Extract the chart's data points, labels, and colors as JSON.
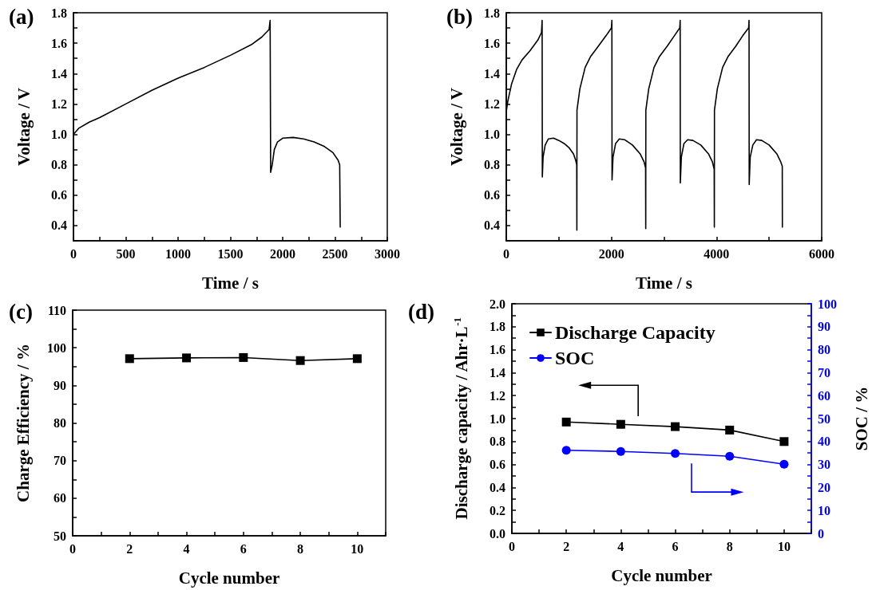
{
  "chart_data": [
    {
      "type": "line",
      "title": "(a)",
      "xlabel": "Time / s",
      "ylabel": "Voltage / V",
      "marker": "none",
      "line_style": "solid",
      "color": "#000000",
      "x": [
        0,
        50,
        150,
        250,
        500,
        750,
        1000,
        1250,
        1500,
        1700,
        1800,
        1870,
        1880,
        1885,
        1900,
        1920,
        1950,
        2000,
        2100,
        2200,
        2300,
        2400,
        2480,
        2530,
        2545,
        2550
      ],
      "values": [
        1.0,
        1.04,
        1.08,
        1.11,
        1.2,
        1.29,
        1.37,
        1.44,
        1.52,
        1.59,
        1.64,
        1.69,
        1.75,
        0.75,
        0.8,
        0.9,
        0.95,
        0.975,
        0.98,
        0.97,
        0.95,
        0.92,
        0.88,
        0.83,
        0.8,
        0.39
      ],
      "xlim": [
        0,
        3000
      ],
      "ylim": [
        0.3,
        1.8
      ],
      "xticks": [
        0,
        {
          "value": 250,
          "label": null
        },
        500,
        {
          "value": 750,
          "label": null
        },
        1000,
        {
          "value": 1250,
          "label": null
        },
        1500,
        {
          "value": 1750,
          "label": null
        },
        2000,
        {
          "value": 2250,
          "label": null
        },
        2500,
        {
          "value": 2750,
          "label": null
        },
        3000
      ],
      "yticks": [
        {
          "value": 0.3,
          "label": null
        },
        0.4,
        {
          "value": 0.5,
          "label": null
        },
        0.6,
        {
          "value": 0.7,
          "label": null
        },
        0.8,
        {
          "value": 0.9,
          "label": null
        },
        {
          "value": 1,
          "label": "1.0"
        },
        {
          "value": 1.1,
          "label": null
        },
        1.2,
        {
          "value": 1.3,
          "label": null
        },
        1.4,
        {
          "value": 1.5,
          "label": null
        },
        1.6,
        {
          "value": 1.7,
          "label": null
        },
        1.8
      ]
    },
    {
      "type": "line",
      "title": "(b)",
      "xlabel": "Time / s",
      "ylabel": "Voltage / V",
      "marker": "none",
      "line_style": "solid",
      "color": "#000000",
      "x": [
        0,
        30,
        100,
        200,
        300,
        450,
        600,
        670,
        682,
        686,
        700,
        740,
        800,
        900,
        1000,
        1100,
        1200,
        1280,
        1320,
        1340,
        1343,
        1345,
        1400,
        1500,
        1600,
        1750,
        1900,
        2000,
        2009,
        2012,
        2030,
        2080,
        2150,
        2250,
        2400,
        2550,
        2620,
        2650,
        2653,
        2655,
        2710,
        2810,
        2910,
        3060,
        3200,
        3300,
        3308,
        3311,
        3330,
        3380,
        3450,
        3550,
        3700,
        3850,
        3920,
        3955,
        3958,
        3960,
        4015,
        4115,
        4215,
        4365,
        4500,
        4610,
        4618,
        4621,
        4640,
        4690,
        4760,
        4860,
        5000,
        5150,
        5220,
        5250,
        5252
      ],
      "values": [
        1.15,
        1.22,
        1.33,
        1.43,
        1.49,
        1.55,
        1.62,
        1.67,
        1.75,
        0.72,
        0.85,
        0.93,
        0.97,
        0.975,
        0.96,
        0.94,
        0.91,
        0.87,
        0.83,
        0.8,
        0.37,
        1.16,
        1.3,
        1.44,
        1.51,
        1.58,
        1.65,
        1.7,
        1.75,
        0.7,
        0.85,
        0.94,
        0.97,
        0.965,
        0.93,
        0.87,
        0.82,
        0.78,
        0.38,
        1.16,
        1.3,
        1.44,
        1.51,
        1.58,
        1.65,
        1.7,
        1.75,
        0.68,
        0.85,
        0.94,
        0.965,
        0.96,
        0.93,
        0.87,
        0.82,
        0.77,
        0.39,
        1.16,
        1.3,
        1.44,
        1.51,
        1.58,
        1.65,
        1.7,
        1.75,
        0.67,
        0.85,
        0.93,
        0.965,
        0.96,
        0.93,
        0.87,
        0.82,
        0.79,
        0.39
      ],
      "xlim": [
        0,
        6000
      ],
      "ylim": [
        0.3,
        1.8
      ],
      "xticks": [
        0,
        {
          "value": 1000,
          "label": null
        },
        2000,
        {
          "value": 3000,
          "label": null
        },
        4000,
        {
          "value": 5000,
          "label": null
        },
        6000
      ],
      "yticks": [
        {
          "value": 0.3,
          "label": null
        },
        0.4,
        {
          "value": 0.5,
          "label": null
        },
        0.6,
        {
          "value": 0.7,
          "label": null
        },
        0.8,
        {
          "value": 0.9,
          "label": null
        },
        {
          "value": 1,
          "label": "1.0"
        },
        {
          "value": 1.1,
          "label": null
        },
        1.2,
        {
          "value": 1.3,
          "label": null
        },
        1.4,
        {
          "value": 1.5,
          "label": null
        },
        1.6,
        {
          "value": 1.7,
          "label": null
        },
        1.8
      ]
    },
    {
      "type": "line",
      "title": "(c)",
      "xlabel": "Cycle number",
      "ylabel": "Charge Efficiency / %",
      "marker": "square",
      "line_style": "solid",
      "color": "#000000",
      "x": [
        2,
        4,
        6,
        8,
        10
      ],
      "values": [
        97.1,
        97.3,
        97.4,
        96.6,
        97.1
      ],
      "xlim": [
        0,
        11
      ],
      "ylim": [
        50,
        110
      ],
      "xticks": [
        0,
        {
          "value": 1,
          "label": null
        },
        2,
        {
          "value": 3,
          "label": null
        },
        4,
        {
          "value": 5,
          "label": null
        },
        6,
        {
          "value": 7,
          "label": null
        },
        8,
        {
          "value": 9,
          "label": null
        },
        10,
        {
          "value": 11,
          "label": null
        }
      ],
      "yticks": [
        50,
        {
          "value": 55,
          "label": null
        },
        60,
        {
          "value": 65,
          "label": null
        },
        70,
        {
          "value": 75,
          "label": null
        },
        80,
        {
          "value": 85,
          "label": null
        },
        90,
        {
          "value": 95,
          "label": null
        },
        100,
        {
          "value": 105,
          "label": null
        },
        110
      ]
    },
    {
      "type": "line",
      "title": "(d)",
      "xlabel": "Cycle number",
      "ylabel": "Discharge capacity / Ahr·L$^{-1}$",
      "y2label": "SOC / %",
      "legend": "top left",
      "line_style": "solid",
      "x": [
        2,
        4,
        6,
        8,
        10
      ],
      "series": [
        {
          "name": "Discharge Capacity",
          "color": "#000000",
          "marker": "square",
          "values": [
            0.97,
            0.95,
            0.93,
            0.9,
            0.8
          ]
        },
        {
          "name": "SOC",
          "color": "#0000ff",
          "marker": "circle",
          "axis": "y2",
          "values": [
            36.2,
            35.7,
            34.8,
            33.6,
            30.1
          ]
        }
      ],
      "xlim": [
        0,
        11
      ],
      "ylim": [
        0,
        2
      ],
      "y2lim": [
        0,
        100
      ],
      "xticks": [
        0,
        {
          "value": 1,
          "label": null
        },
        2,
        {
          "value": 3,
          "label": null
        },
        4,
        {
          "value": 5,
          "label": null
        },
        6,
        {
          "value": 7,
          "label": null
        },
        8,
        {
          "value": 9,
          "label": null
        },
        10,
        {
          "value": 11,
          "label": null
        }
      ],
      "yticks": [
        {
          "value": 0,
          "label": "0.0"
        },
        {
          "value": 0.1,
          "label": null
        },
        0.2,
        {
          "value": 0.3,
          "label": null
        },
        0.4,
        {
          "value": 0.5,
          "label": null
        },
        0.6,
        {
          "value": 0.7,
          "label": null
        },
        0.8,
        {
          "value": 0.9,
          "label": null
        },
        {
          "value": 1,
          "label": "1.0"
        },
        {
          "value": 1.1,
          "label": null
        },
        1.2,
        {
          "value": 1.3,
          "label": null
        },
        1.4,
        {
          "value": 1.5,
          "label": null
        },
        1.6,
        {
          "value": 1.7,
          "label": null
        },
        1.8,
        {
          "value": 1.9,
          "label": null
        },
        {
          "value": 2,
          "label": "2.0"
        }
      ],
      "y2ticks": [
        0,
        {
          "value": 5,
          "label": null
        },
        10,
        {
          "value": 15,
          "label": null
        },
        20,
        {
          "value": 25,
          "label": null
        },
        30,
        {
          "value": 35,
          "label": null
        },
        40,
        {
          "value": 45,
          "label": null
        },
        50,
        {
          "value": 55,
          "label": null
        },
        60,
        {
          "value": 65,
          "label": null
        },
        70,
        {
          "value": 75,
          "label": null
        },
        80,
        {
          "value": 85,
          "label": null
        },
        90,
        {
          "value": 95,
          "label": null
        },
        100
      ]
    }
  ]
}
